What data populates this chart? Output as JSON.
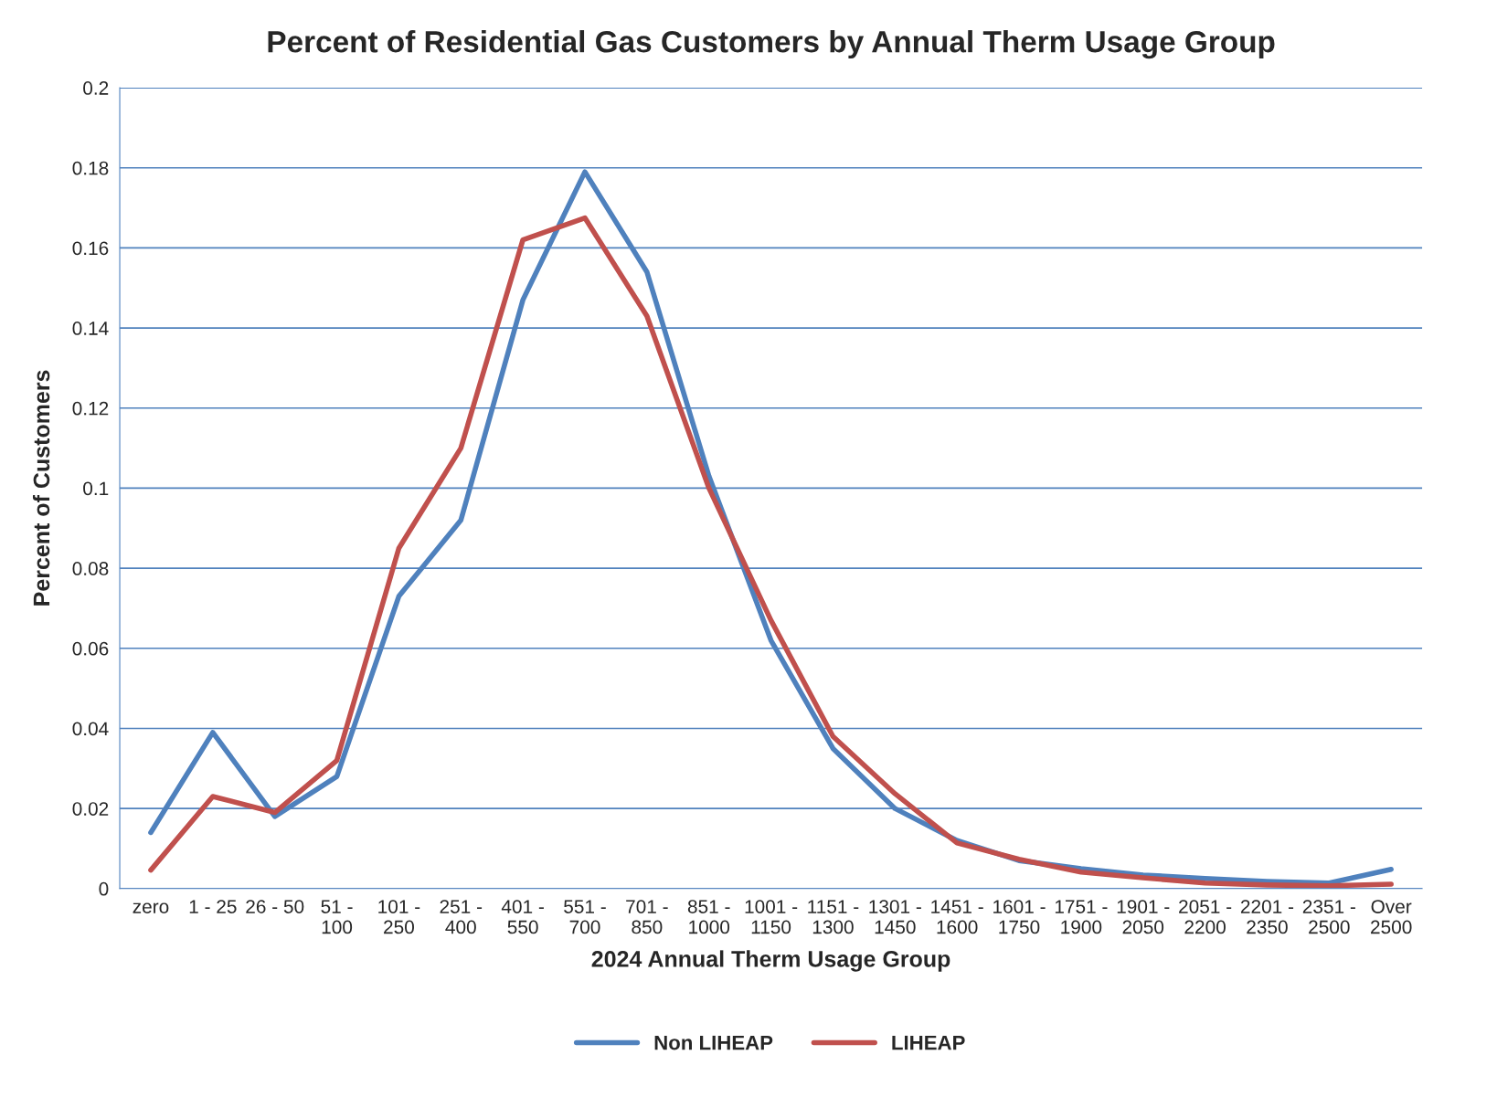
{
  "chart_data": {
    "type": "line",
    "title": "Percent of Residential Gas Customers by Annual Therm Usage Group",
    "xlabel": "2024 Annual Therm Usage Group",
    "ylabel": "Percent of Customers",
    "categories": [
      "zero",
      "1 - 25",
      "26 - 50",
      "51 -\n100",
      "101 -\n250",
      "251 -\n400",
      "401 -\n550",
      "551 -\n700",
      "701 -\n850",
      "851 -\n1000",
      "1001 -\n1150",
      "1151 -\n1300",
      "1301 -\n1450",
      "1451 -\n1600",
      "1601 -\n1750",
      "1751 -\n1900",
      "1901 -\n2050",
      "2051 -\n2200",
      "2201 -\n2350",
      "2351 -\n2500",
      "Over\n2500"
    ],
    "series": [
      {
        "name": "Non LIHEAP",
        "color": "#4f81bd",
        "values": [
          0.014,
          0.039,
          0.018,
          0.028,
          0.073,
          0.092,
          0.147,
          0.179,
          0.154,
          0.103,
          0.062,
          0.035,
          0.02,
          0.012,
          0.007,
          0.005,
          0.0034,
          0.0025,
          0.0018,
          0.0014,
          0.0048
        ]
      },
      {
        "name": "LIHEAP",
        "color": "#c0504d",
        "values": [
          0.0046,
          0.023,
          0.019,
          0.032,
          0.085,
          0.11,
          0.162,
          0.1675,
          0.143,
          0.1,
          0.067,
          0.038,
          0.0237,
          0.0114,
          0.0073,
          0.0041,
          0.0027,
          0.0014,
          0.0009,
          0.0007,
          0.0011
        ]
      }
    ],
    "ylim": [
      0,
      0.2
    ],
    "yticks": [
      0,
      0.02,
      0.04,
      0.06,
      0.08,
      0.1,
      0.12,
      0.14,
      0.16,
      0.18,
      0.2
    ],
    "grid": "y",
    "legend": "bottom",
    "marker": "none",
    "line_style": "solid"
  }
}
